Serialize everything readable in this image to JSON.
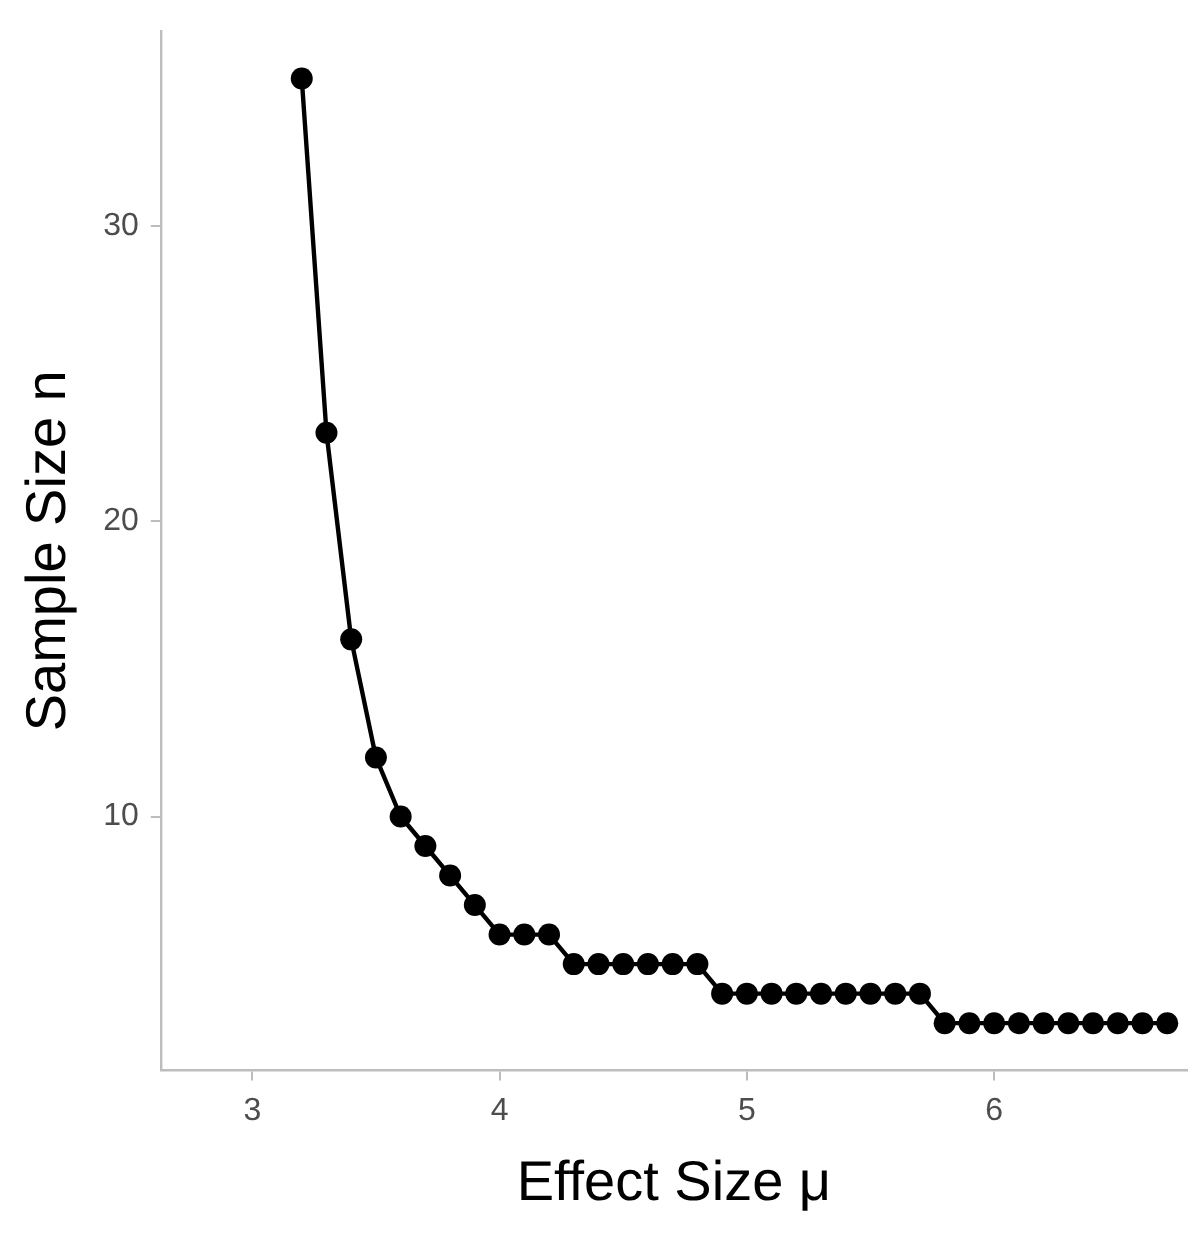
{
  "chart_data": {
    "type": "line",
    "xlabel": "Effect Size μ",
    "ylabel": "Sample Size n",
    "x": [
      3.2,
      3.3,
      3.4,
      3.5,
      3.6,
      3.7,
      3.8,
      3.9,
      4.0,
      4.1,
      4.2,
      4.3,
      4.4,
      4.5,
      4.6,
      4.7,
      4.8,
      4.9,
      5.0,
      5.1,
      5.2,
      5.3,
      5.4,
      5.5,
      5.6,
      5.7,
      5.8,
      5.9,
      6.0,
      6.1,
      6.2,
      6.3,
      6.4,
      6.5,
      6.6,
      6.7
    ],
    "series": [
      {
        "color": "#000000",
        "values": [
          35,
          23,
          16,
          12,
          10,
          9,
          8,
          7,
          6,
          6,
          6,
          5,
          5,
          5,
          5,
          5,
          5,
          4,
          4,
          4,
          4,
          4,
          4,
          4,
          4,
          4,
          3,
          3,
          3,
          3,
          3,
          3,
          3,
          3,
          3,
          3
        ]
      }
    ],
    "xlim": [
      2.63,
      6.78
    ],
    "xticks": [
      3,
      4,
      5,
      6
    ],
    "ylim": [
      1.4,
      36.6
    ],
    "yticks": [
      10,
      20,
      30
    ],
    "grid": false,
    "legend": false,
    "marker": "circle",
    "line_style": "solid"
  }
}
